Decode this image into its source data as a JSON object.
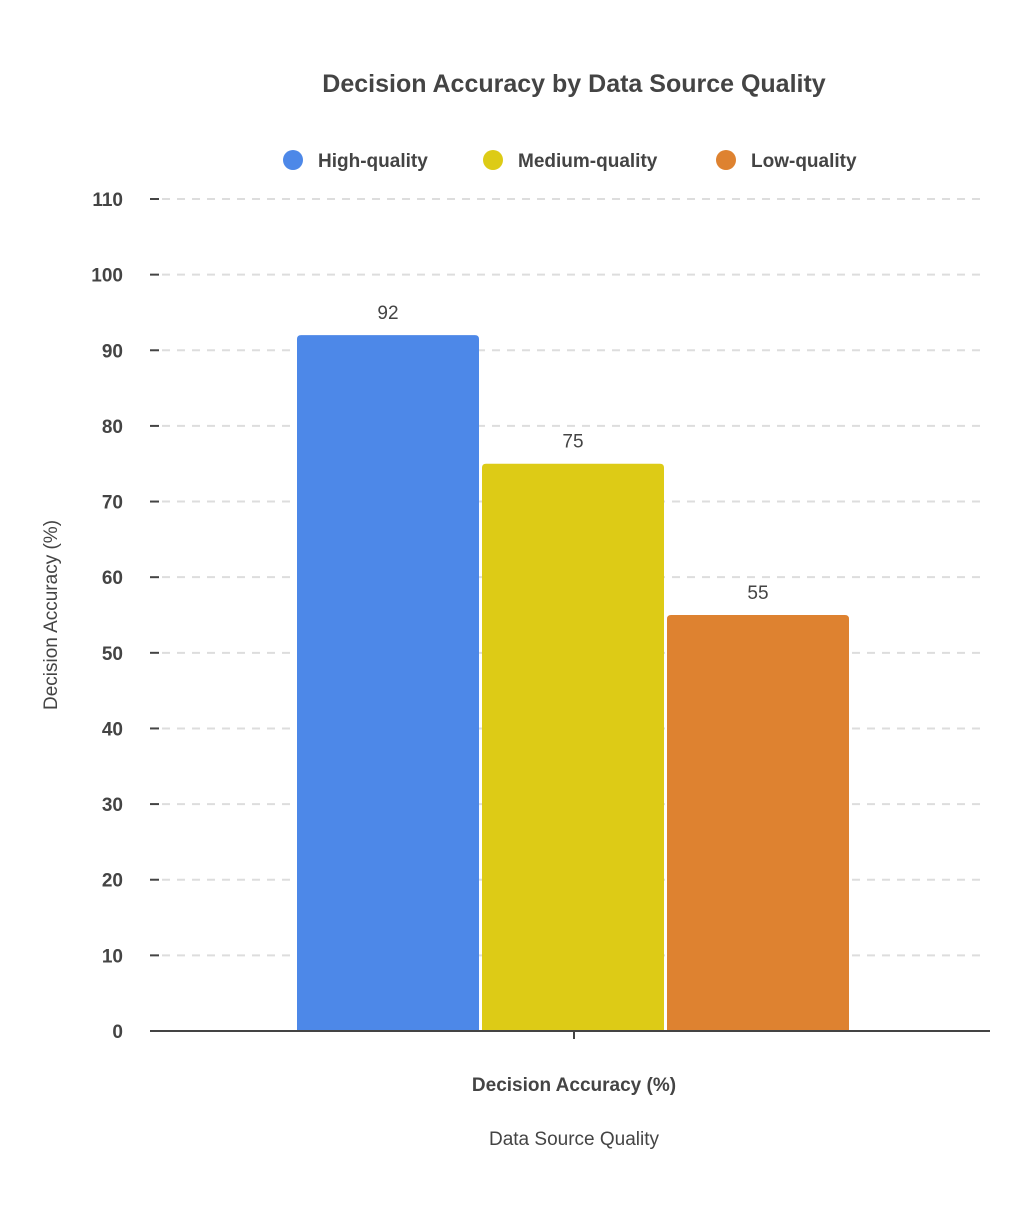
{
  "chart_data": {
    "type": "bar",
    "title": "Decision Accuracy by Data Source Quality",
    "xlabel": "Data Source Quality",
    "ylabel": "Decision Accuracy (%)",
    "categories": [
      "Decision Accuracy (%)"
    ],
    "series": [
      {
        "name": "High-quality",
        "values": [
          92
        ],
        "color": "#4D88E8"
      },
      {
        "name": "Medium-quality",
        "values": [
          75
        ],
        "color": "#DDCB16"
      },
      {
        "name": "Low-quality",
        "values": [
          55
        ],
        "color": "#DE8230"
      }
    ],
    "ylim": [
      0,
      110
    ],
    "yticks": [
      "0",
      "10",
      "20",
      "30",
      "40",
      "50",
      "60",
      "70",
      "80",
      "90",
      "100",
      "110"
    ],
    "grid": true,
    "legend": "top"
  }
}
